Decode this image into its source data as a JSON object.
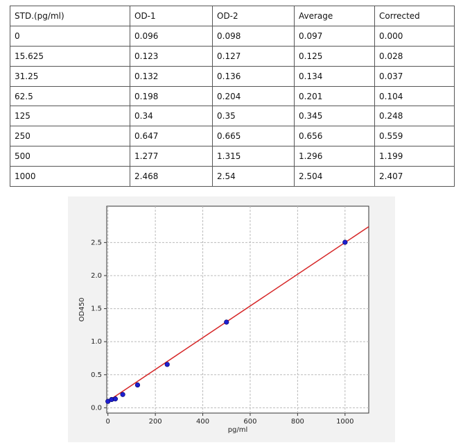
{
  "table": {
    "header": [
      "STD.(pg/ml)",
      "OD-1",
      "OD-2",
      "Average",
      "Corrected"
    ],
    "rows": [
      [
        "0",
        "0.096",
        "0.098",
        "0.097",
        "0.000"
      ],
      [
        "15.625",
        "0.123",
        "0.127",
        "0.125",
        "0.028"
      ],
      [
        "31.25",
        "0.132",
        "0.136",
        "0.134",
        "0.037"
      ],
      [
        "62.5",
        "0.198",
        "0.204",
        "0.201",
        "0.104"
      ],
      [
        "125",
        "0.34",
        "0.35",
        "0.345",
        "0.248"
      ],
      [
        "250",
        "0.647",
        "0.665",
        "0.656",
        "0.559"
      ],
      [
        "500",
        "1.277",
        "1.315",
        "1.296",
        "1.199"
      ],
      [
        "1000",
        "2.468",
        "2.54",
        "2.504",
        "2.407"
      ]
    ]
  },
  "chart_data": {
    "type": "scatter",
    "x_label": "pg/ml",
    "y_label": "OD450",
    "x": [
      0,
      15.625,
      31.25,
      62.5,
      125,
      250,
      500,
      1000
    ],
    "series": [
      {
        "color": "#1f1fd0",
        "values": [
          0.097,
          0.125,
          0.134,
          0.201,
          0.345,
          0.656,
          1.296,
          2.504
        ]
      }
    ],
    "fit_line": {
      "color": "#d62728",
      "x": [
        0,
        1100
      ],
      "y": [
        0.1,
        2.74
      ]
    },
    "xlim": [
      -5,
      1100
    ],
    "ylim": [
      -0.08,
      3.05
    ],
    "xticks": [
      0,
      200,
      400,
      600,
      800,
      1000
    ],
    "yticks": [
      {
        "value": 0,
        "label": "0.0"
      },
      0.5,
      {
        "value": 1,
        "label": "1.0"
      },
      1.5,
      {
        "value": 2,
        "label": "2.0"
      },
      2.5
    ],
    "grid": true
  }
}
